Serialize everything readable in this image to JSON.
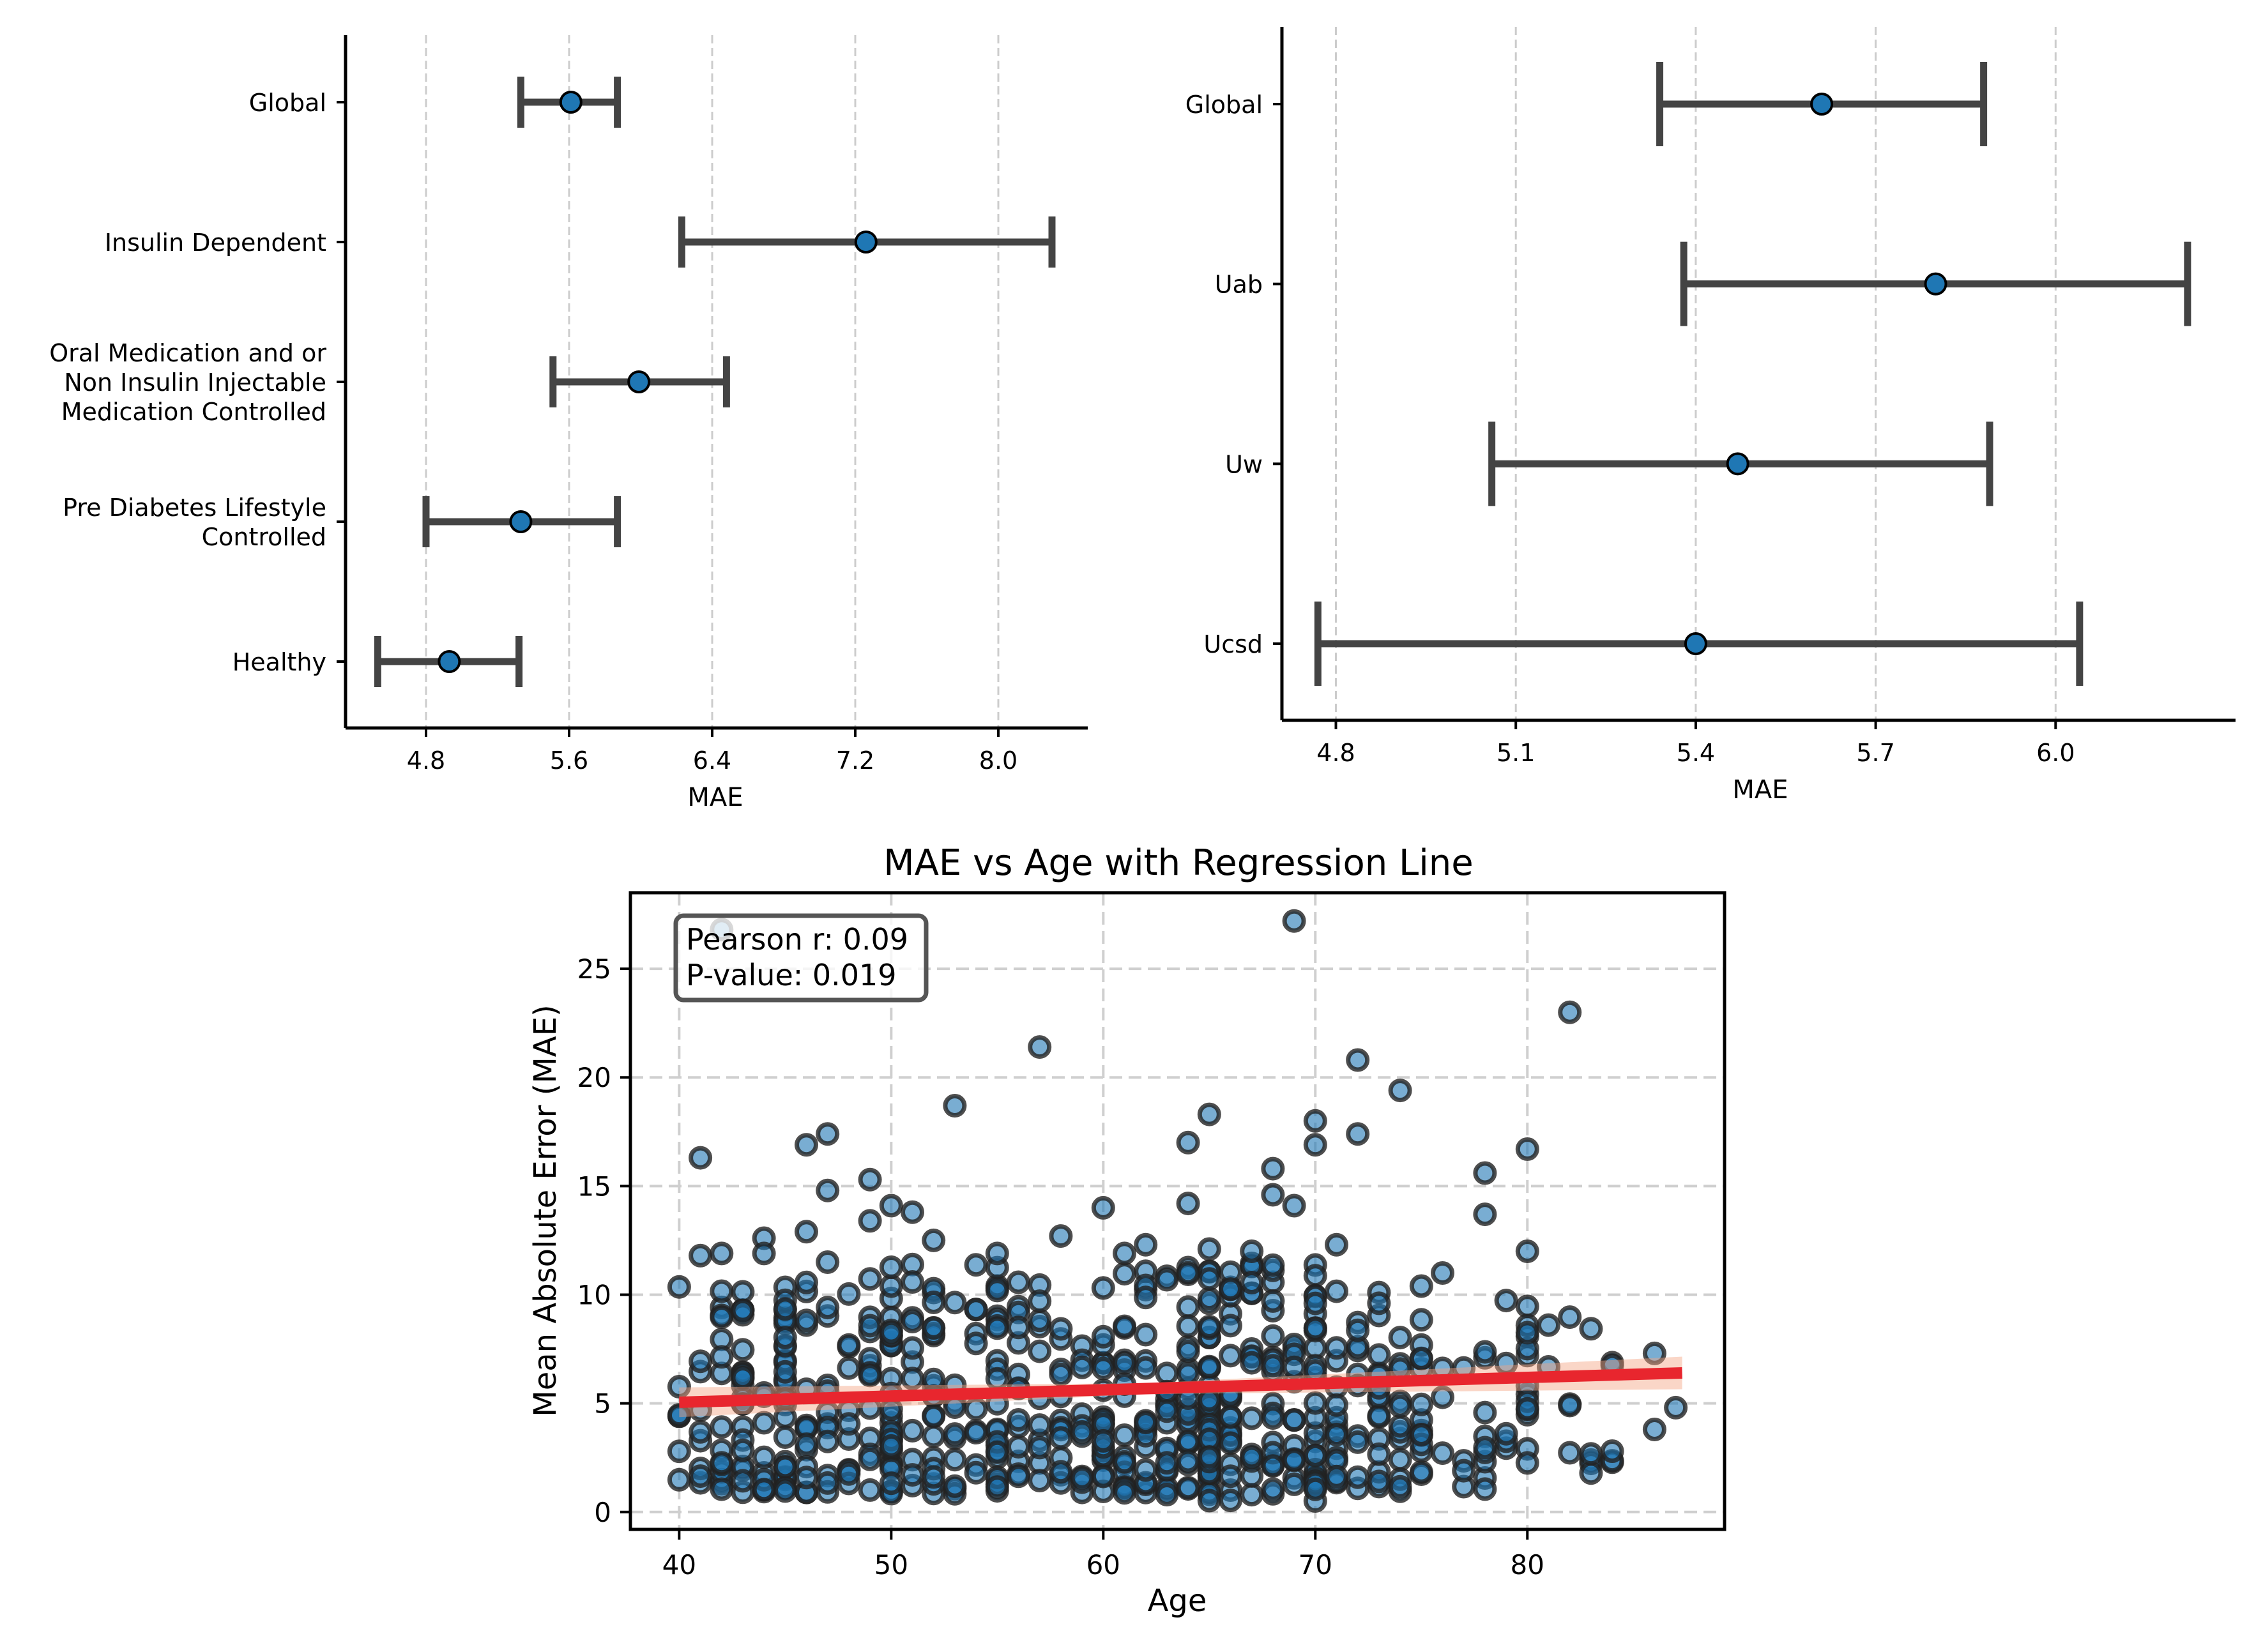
{
  "chart_data": [
    {
      "type": "forest",
      "panel": "top-left",
      "title": "",
      "xlabel": "MAE",
      "ylabel": "",
      "xlim": [
        4.35,
        8.5
      ],
      "xticks": [
        "4.8",
        "5.6",
        "6.4",
        "7.2",
        "8.0"
      ],
      "grid": "vertical dashed",
      "categories": [
        "Global",
        "Insulin Dependent",
        "Oral Medication and or\nNon Insulin Injectable\nMedication Controlled",
        "Pre Diabetes Lifestyle\nControlled",
        "Healthy"
      ],
      "estimates": [
        5.61,
        7.26,
        5.99,
        5.33,
        4.93
      ],
      "ci_lower": [
        5.33,
        6.23,
        5.51,
        4.8,
        4.53
      ],
      "ci_upper": [
        5.87,
        8.3,
        6.48,
        5.87,
        5.32
      ]
    },
    {
      "type": "forest",
      "panel": "top-right",
      "title": "",
      "xlabel": "MAE",
      "ylabel": "",
      "xlim": [
        4.71,
        6.3
      ],
      "xticks": [
        "4.8",
        "5.1",
        "5.4",
        "5.7",
        "6.0"
      ],
      "grid": "vertical dashed",
      "categories": [
        "Global",
        "Uab",
        "Uw",
        "Ucsd"
      ],
      "estimates": [
        5.61,
        5.8,
        5.47,
        5.4
      ],
      "ci_lower": [
        5.34,
        5.38,
        5.06,
        4.77
      ],
      "ci_upper": [
        5.88,
        6.22,
        5.89,
        6.04
      ]
    },
    {
      "type": "scatter",
      "panel": "bottom",
      "title": "MAE vs Age with Regression Line",
      "xlabel": "Age",
      "ylabel": "Mean Absolute Error (MAE)",
      "xlim": [
        37.7,
        89.3
      ],
      "ylim": [
        -0.8,
        28.5
      ],
      "xticks": [
        "40",
        "50",
        "60",
        "70",
        "80"
      ],
      "yticks": [
        "0",
        "5",
        "10",
        "15",
        "20",
        "25"
      ],
      "grid": "dashed both",
      "annotation": {
        "line1": "Pearson r: 0.09",
        "line2": "P-value: 0.019",
        "placement": "top-left"
      },
      "regression": {
        "x": [
          40,
          87.3
        ],
        "y": [
          5.05,
          6.4
        ]
      },
      "outliers": [
        [
          42,
          26.8
        ],
        [
          69,
          27.2
        ],
        [
          82,
          23.0
        ],
        [
          57,
          21.4
        ],
        [
          72,
          20.8
        ],
        [
          74,
          19.4
        ],
        [
          53,
          18.7
        ],
        [
          65,
          18.3
        ],
        [
          70,
          18.0
        ],
        [
          47,
          17.4
        ],
        [
          72,
          17.4
        ],
        [
          46,
          16.9
        ],
        [
          64,
          17.0
        ],
        [
          70,
          16.9
        ],
        [
          80,
          16.7
        ],
        [
          41,
          16.3
        ],
        [
          68,
          15.8
        ],
        [
          78,
          15.6
        ],
        [
          49,
          15.3
        ],
        [
          47,
          14.8
        ],
        [
          68,
          14.6
        ],
        [
          64,
          14.2
        ],
        [
          69,
          14.1
        ],
        [
          50,
          14.1
        ],
        [
          51,
          13.8
        ],
        [
          60,
          14.0
        ],
        [
          78,
          13.7
        ],
        [
          49,
          13.4
        ],
        [
          52,
          12.5
        ],
        [
          44,
          12.6
        ],
        [
          46,
          12.9
        ],
        [
          58,
          12.7
        ],
        [
          62,
          12.3
        ],
        [
          65,
          12.1
        ],
        [
          71,
          12.3
        ],
        [
          80,
          12.0
        ],
        [
          41,
          11.8
        ],
        [
          42,
          11.9
        ],
        [
          44,
          11.9
        ],
        [
          47,
          11.5
        ],
        [
          55,
          11.9
        ],
        [
          61,
          11.9
        ],
        [
          67,
          12.0
        ],
        [
          76,
          11.0
        ],
        [
          81,
          8.6
        ],
        [
          86,
          7.3
        ],
        [
          87,
          4.8
        ],
        [
          86,
          3.8
        ],
        [
          84,
          2.8
        ]
      ],
      "clouds": [
        {
          "x": [
            40,
            45
          ],
          "ymin": 0.9,
          "ymax": 10.5,
          "n": 75
        },
        {
          "x": [
            45,
            50
          ],
          "ymin": 0.9,
          "ymax": 11.0,
          "n": 80
        },
        {
          "x": [
            50,
            55
          ],
          "ymin": 0.8,
          "ymax": 11.5,
          "n": 80
        },
        {
          "x": [
            55,
            60
          ],
          "ymin": 0.9,
          "ymax": 11.0,
          "n": 75
        },
        {
          "x": [
            60,
            65
          ],
          "ymin": 0.8,
          "ymax": 11.5,
          "n": 100
        },
        {
          "x": [
            65,
            70
          ],
          "ymin": 0.5,
          "ymax": 11.5,
          "n": 110
        },
        {
          "x": [
            70,
            75
          ],
          "ymin": 0.9,
          "ymax": 10.5,
          "n": 75
        },
        {
          "x": [
            75,
            80
          ],
          "ymin": 1.0,
          "ymax": 10.0,
          "n": 35
        },
        {
          "x": [
            80,
            84
          ],
          "ymin": 1.5,
          "ymax": 9.0,
          "n": 18
        }
      ],
      "seed": 20240611
    }
  ]
}
